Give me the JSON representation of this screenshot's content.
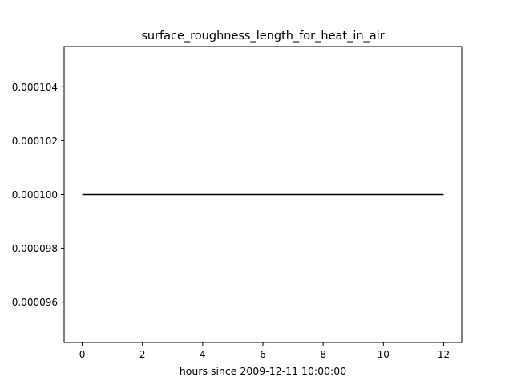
{
  "chart_data": {
    "type": "line",
    "title": "surface_roughness_length_for_heat_in_air",
    "xlabel": "hours since 2009-12-11 10:00:00",
    "ylabel": "",
    "xlim": [
      -0.6,
      12.6
    ],
    "ylim": [
      9.45e-05,
      0.0001055
    ],
    "xticks": [
      0,
      2,
      4,
      6,
      8,
      10,
      12
    ],
    "xtick_labels": [
      "0",
      "2",
      "4",
      "6",
      "8",
      "10",
      "12"
    ],
    "yticks": [
      9.6e-05,
      9.8e-05,
      0.0001,
      0.000102,
      0.000104
    ],
    "ytick_labels": [
      "0.000096",
      "0.000098",
      "0.000100",
      "0.000102",
      "0.000104"
    ],
    "grid": false,
    "series": [
      {
        "x": [
          0,
          12
        ],
        "y": [
          0.0001,
          0.0001
        ],
        "color": "#000000"
      }
    ]
  }
}
